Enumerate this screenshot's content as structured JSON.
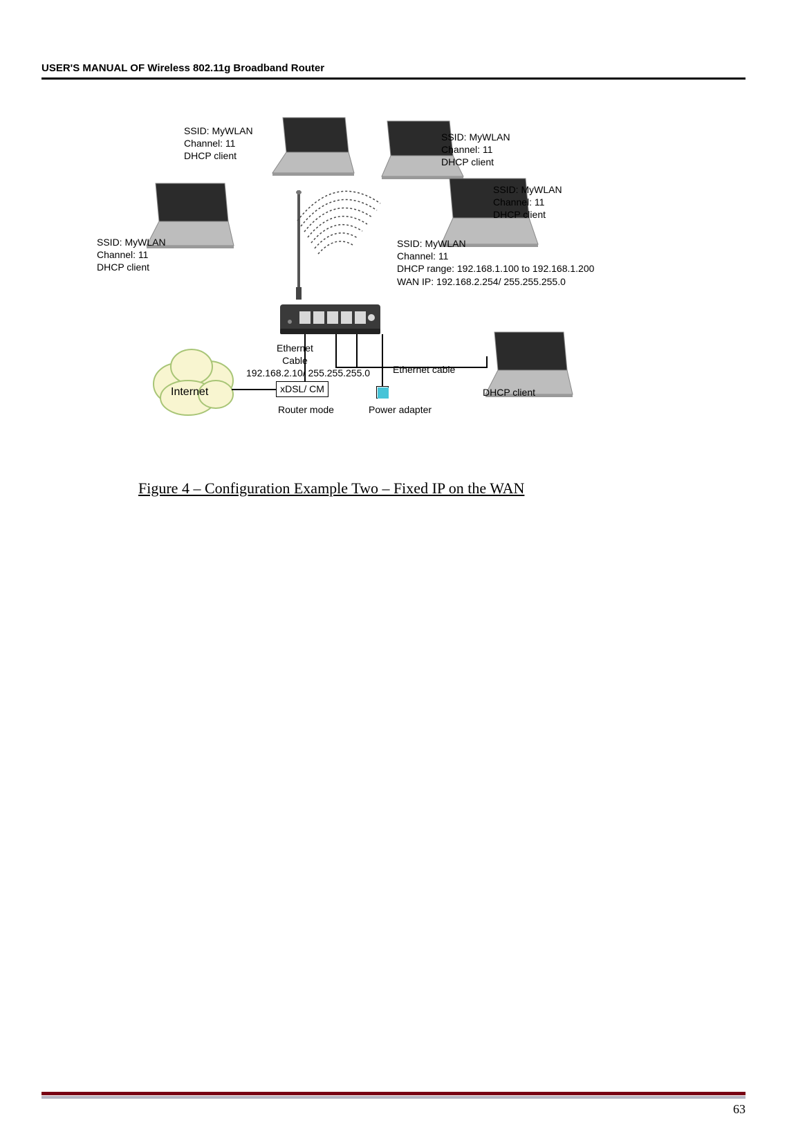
{
  "header": "USER'S MANUAL OF Wireless 802.11g Broadband Router",
  "page_number": "63",
  "caption": "Figure 4 – Configuration Example Two – Fixed IP on the WAN",
  "labels": {
    "laptop_tl": "SSID: MyWLAN\nChannel: 11\nDHCP client",
    "laptop_ml": "SSID: MyWLAN\nChannel: 11\nDHCP client",
    "laptop_tr": "SSID: MyWLAN\nChannel: 11\nDHCP client",
    "laptop_mr": "SSID: MyWLAN\nChannel: 11\nDHCP client",
    "router_info": "SSID: MyWLAN\nChannel: 11\nDHCP range: 192.168.1.100 to 192.168.1.200\nWAN IP: 192.168.2.254/ 255.255.255.0",
    "br_client": "DHCP client",
    "eth_cable_l": "Ethernet\nCable",
    "eth_cable_r": "Ethernet cable",
    "modem_ip": "192.168.2.10/ 255.255.255.0",
    "modem": "xDSL/ CM",
    "router_mode": "Router mode",
    "power": "Power adapter",
    "internet": "Internet"
  },
  "colors": {
    "laptop_body": "#bdbdbd",
    "laptop_screen": "#2b2b2b",
    "cloud_fill": "#f8f5d0",
    "cloud_stroke": "#a8c576",
    "power_fill": "#47c4d8",
    "rule_red": "#780015",
    "rule_grey": "#b5b5c2",
    "router_body": "#3a3a3a",
    "router_port": "#d8d8d8"
  }
}
